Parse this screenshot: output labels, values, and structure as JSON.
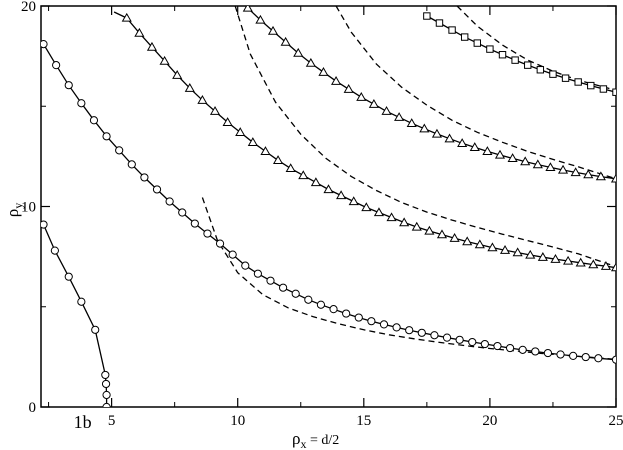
{
  "chart_data": {
    "type": "line",
    "xlim": [
      2.2,
      25
    ],
    "ylim": [
      0,
      20
    ],
    "x_ticks": [
      "5",
      "10",
      "15",
      "20",
      "25"
    ],
    "y_ticks": [
      "0",
      "10",
      "20"
    ],
    "xlabel": {
      "main": "ρ",
      "sub": "x",
      "rest": " = d/2"
    },
    "ylabel": {
      "main": "ρ",
      "sub": "y"
    },
    "annotations": [
      {
        "text": "1b",
        "x": 3.85,
        "y": -0.75
      }
    ],
    "grid": false,
    "legend": "none",
    "series": [
      {
        "marker": "circle",
        "style": "solid",
        "x": [
          2.3,
          2.75,
          3.3,
          3.8,
          4.35,
          4.75,
          4.78,
          4.8,
          4.8
        ],
        "y": [
          9.1,
          7.8,
          6.5,
          5.25,
          3.85,
          1.6,
          1.15,
          0.6,
          0.0
        ]
      },
      {
        "marker": "circle",
        "style": "solid",
        "x": [
          2.3,
          2.8,
          3.3,
          3.8,
          4.3,
          4.8,
          5.3,
          5.8,
          6.3,
          6.8,
          7.3,
          7.8,
          8.3,
          8.8,
          9.3,
          9.8,
          10.3,
          10.8,
          11.3,
          11.8,
          12.3,
          12.8,
          13.3,
          13.8,
          14.3,
          14.8,
          15.3,
          15.8,
          16.3,
          16.8,
          17.3,
          17.8,
          18.3,
          18.8,
          19.3,
          19.8,
          20.3,
          20.8,
          21.3,
          21.8,
          22.3,
          22.8,
          23.3,
          23.8,
          24.3,
          25.0
        ],
        "y": [
          18.1,
          17.05,
          16.05,
          15.15,
          14.3,
          13.5,
          12.8,
          12.1,
          11.45,
          10.85,
          10.25,
          9.7,
          9.15,
          8.65,
          8.15,
          7.6,
          7.05,
          6.65,
          6.3,
          5.95,
          5.65,
          5.35,
          5.1,
          4.88,
          4.66,
          4.46,
          4.28,
          4.12,
          3.97,
          3.83,
          3.7,
          3.58,
          3.46,
          3.35,
          3.24,
          3.14,
          3.04,
          2.94,
          2.85,
          2.77,
          2.69,
          2.62,
          2.55,
          2.49,
          2.43,
          2.36
        ]
      },
      {
        "marker": "triangle",
        "style": "solid",
        "x": [
          5.6,
          6.1,
          6.6,
          7.1,
          7.6,
          8.1,
          8.6,
          9.1,
          9.6,
          10.1,
          10.6,
          11.1,
          11.6,
          12.1,
          12.6,
          13.1,
          13.6,
          14.1,
          14.6,
          15.1,
          15.6,
          16.1,
          16.6,
          17.1,
          17.6,
          18.1,
          18.6,
          19.1,
          19.6,
          20.1,
          20.6,
          21.1,
          21.6,
          22.1,
          22.6,
          23.1,
          23.6,
          24.1,
          24.6,
          25.0
        ],
        "y": [
          19.4,
          18.65,
          17.95,
          17.25,
          16.55,
          15.9,
          15.3,
          14.75,
          14.2,
          13.7,
          13.2,
          12.75,
          12.3,
          11.9,
          11.55,
          11.2,
          10.85,
          10.55,
          10.25,
          9.95,
          9.7,
          9.45,
          9.2,
          8.98,
          8.78,
          8.6,
          8.42,
          8.25,
          8.1,
          7.95,
          7.82,
          7.7,
          7.58,
          7.47,
          7.37,
          7.28,
          7.19,
          7.1,
          7.02,
          6.95
        ]
      },
      {
        "marker": "triangle",
        "style": "solid",
        "x": [
          10.4,
          10.9,
          11.4,
          11.9,
          12.4,
          12.9,
          13.4,
          13.9,
          14.4,
          14.9,
          15.4,
          15.9,
          16.4,
          16.9,
          17.4,
          17.9,
          18.4,
          18.9,
          19.4,
          19.9,
          20.4,
          20.9,
          21.4,
          21.9,
          22.4,
          22.9,
          23.4,
          23.9,
          24.4,
          25.0
        ],
        "y": [
          19.9,
          19.3,
          18.75,
          18.2,
          17.65,
          17.15,
          16.7,
          16.25,
          15.85,
          15.45,
          15.1,
          14.75,
          14.45,
          14.15,
          13.88,
          13.62,
          13.38,
          13.15,
          12.95,
          12.75,
          12.57,
          12.4,
          12.24,
          12.09,
          11.95,
          11.82,
          11.7,
          11.59,
          11.49,
          11.38
        ]
      },
      {
        "marker": "square",
        "style": "solid",
        "x": [
          17.5,
          18.0,
          18.5,
          19.0,
          19.5,
          20.0,
          20.5,
          21.0,
          21.5,
          22.0,
          22.5,
          23.0,
          23.5,
          24.0,
          24.5,
          25.0
        ],
        "y": [
          19.5,
          19.15,
          18.8,
          18.45,
          18.15,
          17.85,
          17.57,
          17.3,
          17.05,
          16.82,
          16.6,
          16.4,
          16.21,
          16.03,
          15.86,
          15.7
        ]
      },
      {
        "marker": "none",
        "style": "solid",
        "x": [
          5.1,
          5.6
        ],
        "y": [
          19.7,
          19.4
        ]
      },
      {
        "marker": "none",
        "style": "dashed",
        "x": [
          8.6,
          9.2,
          10,
          11,
          12,
          13,
          14,
          15,
          16,
          17,
          18,
          19,
          20,
          21,
          22,
          23,
          24,
          25
        ],
        "y": [
          10.45,
          8.3,
          6.7,
          5.6,
          4.95,
          4.5,
          4.15,
          3.85,
          3.6,
          3.4,
          3.22,
          3.06,
          2.92,
          2.8,
          2.68,
          2.58,
          2.48,
          2.38
        ]
      },
      {
        "marker": "none",
        "style": "dashed",
        "x": [
          9.9,
          10.5,
          11.5,
          12.5,
          13.5,
          14.5,
          15.5,
          16.5,
          17.5,
          18.5,
          19.5,
          20.5,
          21.5,
          22.5,
          23.5,
          25
        ],
        "y": [
          20,
          17.6,
          15.2,
          13.6,
          12.4,
          11.5,
          10.8,
          10.2,
          9.72,
          9.32,
          8.96,
          8.62,
          8.3,
          7.98,
          7.64,
          7.0
        ]
      },
      {
        "marker": "none",
        "style": "dashed",
        "x": [
          13.9,
          14.5,
          15.5,
          16.5,
          17.5,
          18.5,
          19.5,
          20.5,
          21.5,
          22.5,
          23.5,
          25
        ],
        "y": [
          20,
          18.7,
          17.1,
          15.95,
          15.05,
          14.3,
          13.7,
          13.2,
          12.75,
          12.35,
          11.98,
          11.38
        ]
      },
      {
        "marker": "none",
        "style": "dashed",
        "x": [
          18.7,
          19.5,
          20.5,
          21.5,
          22.5,
          23.5,
          25
        ],
        "y": [
          20,
          19.0,
          18.05,
          17.3,
          16.75,
          16.3,
          15.8
        ]
      }
    ]
  }
}
